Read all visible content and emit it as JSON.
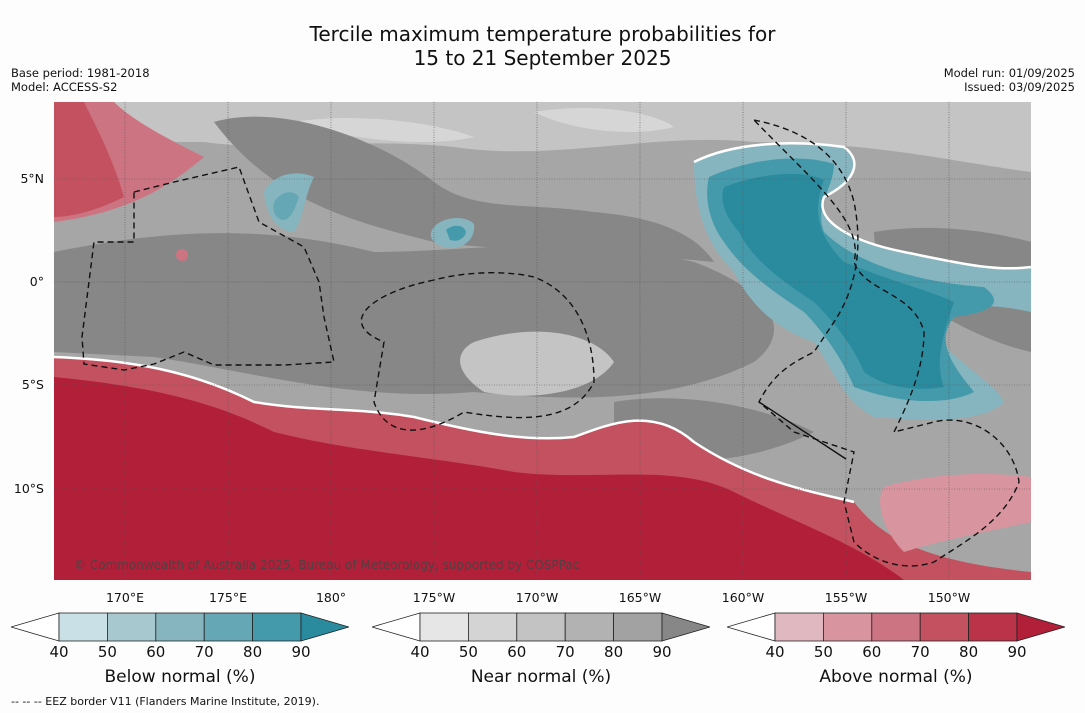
{
  "title": {
    "line1": "Tercile maximum temperature probabilities for",
    "line2": "15 to 21 September 2025"
  },
  "meta": {
    "base_period": "Base period: 1981-2018",
    "model": "Model: ACCESS-S2",
    "model_run": "Model run: 01/09/2025",
    "issued": "Issued: 03/09/2025"
  },
  "axes": {
    "lat_ticks": [
      "5°N",
      "0°",
      "5°S",
      "10°S"
    ],
    "lon_ticks": [
      "170°E",
      "175°E",
      "180°",
      "175°W",
      "170°W",
      "165°W",
      "160°W",
      "155°W",
      "150°W"
    ]
  },
  "copyright": "© Commonwealth of Australia 2025, Bureau of Meteorology, supported by COSPPac",
  "colorbars": [
    {
      "label": "Below normal (%)",
      "ticks": [
        "40",
        "50",
        "60",
        "70",
        "80",
        "90"
      ],
      "colors": [
        "#ffffff",
        "#c8e0e6",
        "#a7c8cf",
        "#87b5bf",
        "#65a7b5",
        "#449aaa",
        "#2a8b9f"
      ]
    },
    {
      "label": "Near normal (%)",
      "ticks": [
        "40",
        "50",
        "60",
        "70",
        "80",
        "90"
      ],
      "colors": [
        "#ffffff",
        "#e6e6e6",
        "#d4d4d4",
        "#c3c3c3",
        "#b2b2b2",
        "#a2a2a2",
        "#878787"
      ]
    },
    {
      "label": "Above normal (%)",
      "ticks": [
        "40",
        "50",
        "60",
        "70",
        "80",
        "90"
      ],
      "colors": [
        "#ffffff",
        "#e0b8bf",
        "#d8959f",
        "#cd7482",
        "#c4515f",
        "#ba3349",
        "#b11f39"
      ]
    }
  ],
  "eez_note": "--  --  -- EEZ border V11 (Flanders Marine Institute, 2019)."
}
